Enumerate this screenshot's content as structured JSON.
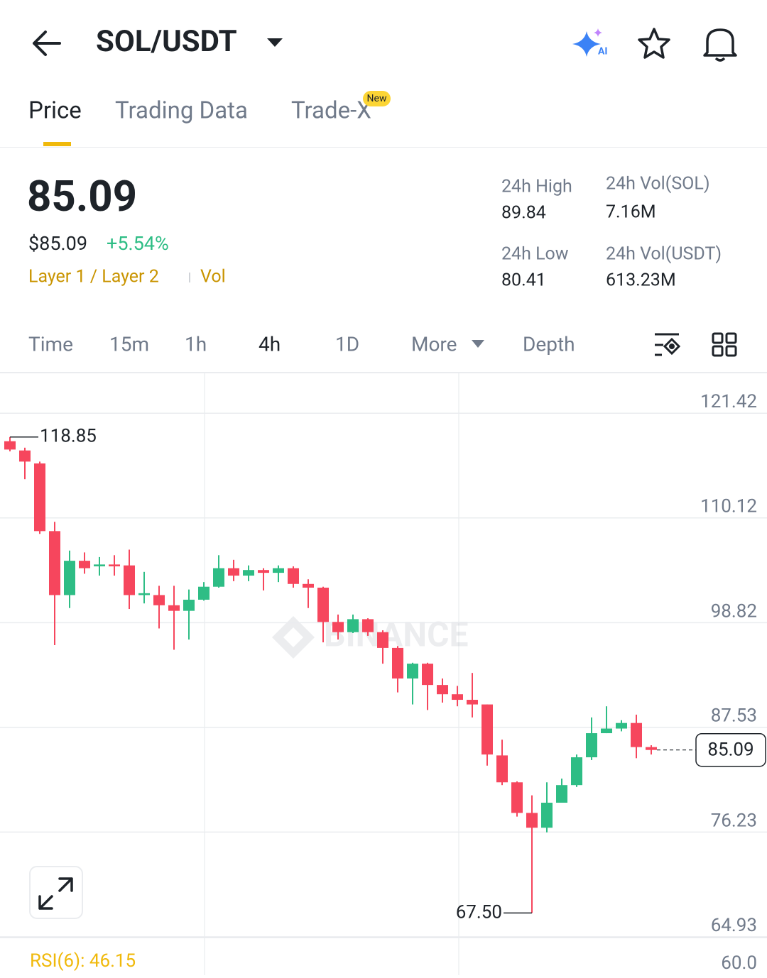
{
  "header": {
    "title": "SOL/USDT"
  },
  "tabs": [
    "Price",
    "Trading Data",
    "Trade-X"
  ],
  "tab_badge": "New",
  "price": {
    "last": "85.09",
    "fiat": "$85.09",
    "change": "+5.54%",
    "tags": [
      "Layer 1 / Layer 2",
      "Vol"
    ]
  },
  "stats": [
    {
      "label": "24h High",
      "value": "89.84"
    },
    {
      "label": "24h Vol(SOL)",
      "value": "7.16M"
    },
    {
      "label": "24h Low",
      "value": "80.41"
    },
    {
      "label": "24h Vol(USDT)",
      "value": "613.23M"
    }
  ],
  "intervals": [
    "Time",
    "15m",
    "1h",
    "4h",
    "1D",
    "More",
    "Depth"
  ],
  "watermark": "BINANCE",
  "chart_data": {
    "type": "candlestick",
    "up_color": "#2ebd85",
    "down_color": "#f6465d",
    "open": [
      118.4,
      117.4,
      116.0,
      108.7,
      101.8,
      105.5,
      104.9,
      105.1,
      105.0,
      101.8,
      101.8,
      100.7,
      100.1,
      101.3,
      102.7,
      104.7,
      103.9,
      104.5,
      104.2,
      104.7,
      103.0,
      102.6,
      98.9,
      97.8,
      99.2,
      97.8,
      96.1,
      92.8,
      94.4,
      92.1,
      91.1,
      90.5,
      90.0,
      84.5,
      81.6,
      78.3,
      76.7,
      79.4,
      81.3,
      84.3,
      86.9,
      87.4,
      88.0,
      85.4
    ],
    "high": [
      118.85,
      117.7,
      116.2,
      109.7,
      106.6,
      106.4,
      105.9,
      106.1,
      106.7,
      104.3,
      102.8,
      102.8,
      102.4,
      103.2,
      106.1,
      105.6,
      105.0,
      104.7,
      105.0,
      104.9,
      103.5,
      102.7,
      99.7,
      99.7,
      99.3,
      98.0,
      96.3,
      94.5,
      94.5,
      92.8,
      92.0,
      93.4,
      90.0,
      86.2,
      81.7,
      80.2,
      81.6,
      82.0,
      84.6,
      88.6,
      89.8,
      88.3,
      88.9,
      85.6
    ],
    "low": [
      117.3,
      114.3,
      108.4,
      96.4,
      100.4,
      104.1,
      103.9,
      103.9,
      100.3,
      100.9,
      98.2,
      95.9,
      97.0,
      101.2,
      102.6,
      103.3,
      103.3,
      102.3,
      103.2,
      102.6,
      100.4,
      96.7,
      97.0,
      97.7,
      97.4,
      94.4,
      91.3,
      90.0,
      89.4,
      90.2,
      89.8,
      88.6,
      83.4,
      81.3,
      77.9,
      67.5,
      76.2,
      79.4,
      81.1,
      84.0,
      86.9,
      87.1,
      84.2,
      84.6
    ],
    "close": [
      117.5,
      116.2,
      108.7,
      101.8,
      105.5,
      104.7,
      105.1,
      104.9,
      101.8,
      102.0,
      100.7,
      100.1,
      101.3,
      102.7,
      104.7,
      103.9,
      104.5,
      104.2,
      104.7,
      103.0,
      102.6,
      98.9,
      97.8,
      99.2,
      97.8,
      96.1,
      92.8,
      94.4,
      92.1,
      91.1,
      90.5,
      90.0,
      84.6,
      81.6,
      78.3,
      76.7,
      79.4,
      81.3,
      84.3,
      86.9,
      87.4,
      88.0,
      85.4,
      85.09
    ],
    "ylim": [
      64.93,
      125.8
    ],
    "yticks": [
      121.42,
      110.12,
      98.82,
      87.53,
      76.23,
      64.93
    ],
    "grid": true,
    "annotations": [
      {
        "text": "118.85",
        "value": 118.85
      },
      {
        "text": "67.50",
        "value": 67.5
      }
    ],
    "last_price": {
      "text": "85.09",
      "value": 85.09
    }
  },
  "rsi": {
    "label": "RSI(6): 46.15",
    "tick": "60.0"
  }
}
